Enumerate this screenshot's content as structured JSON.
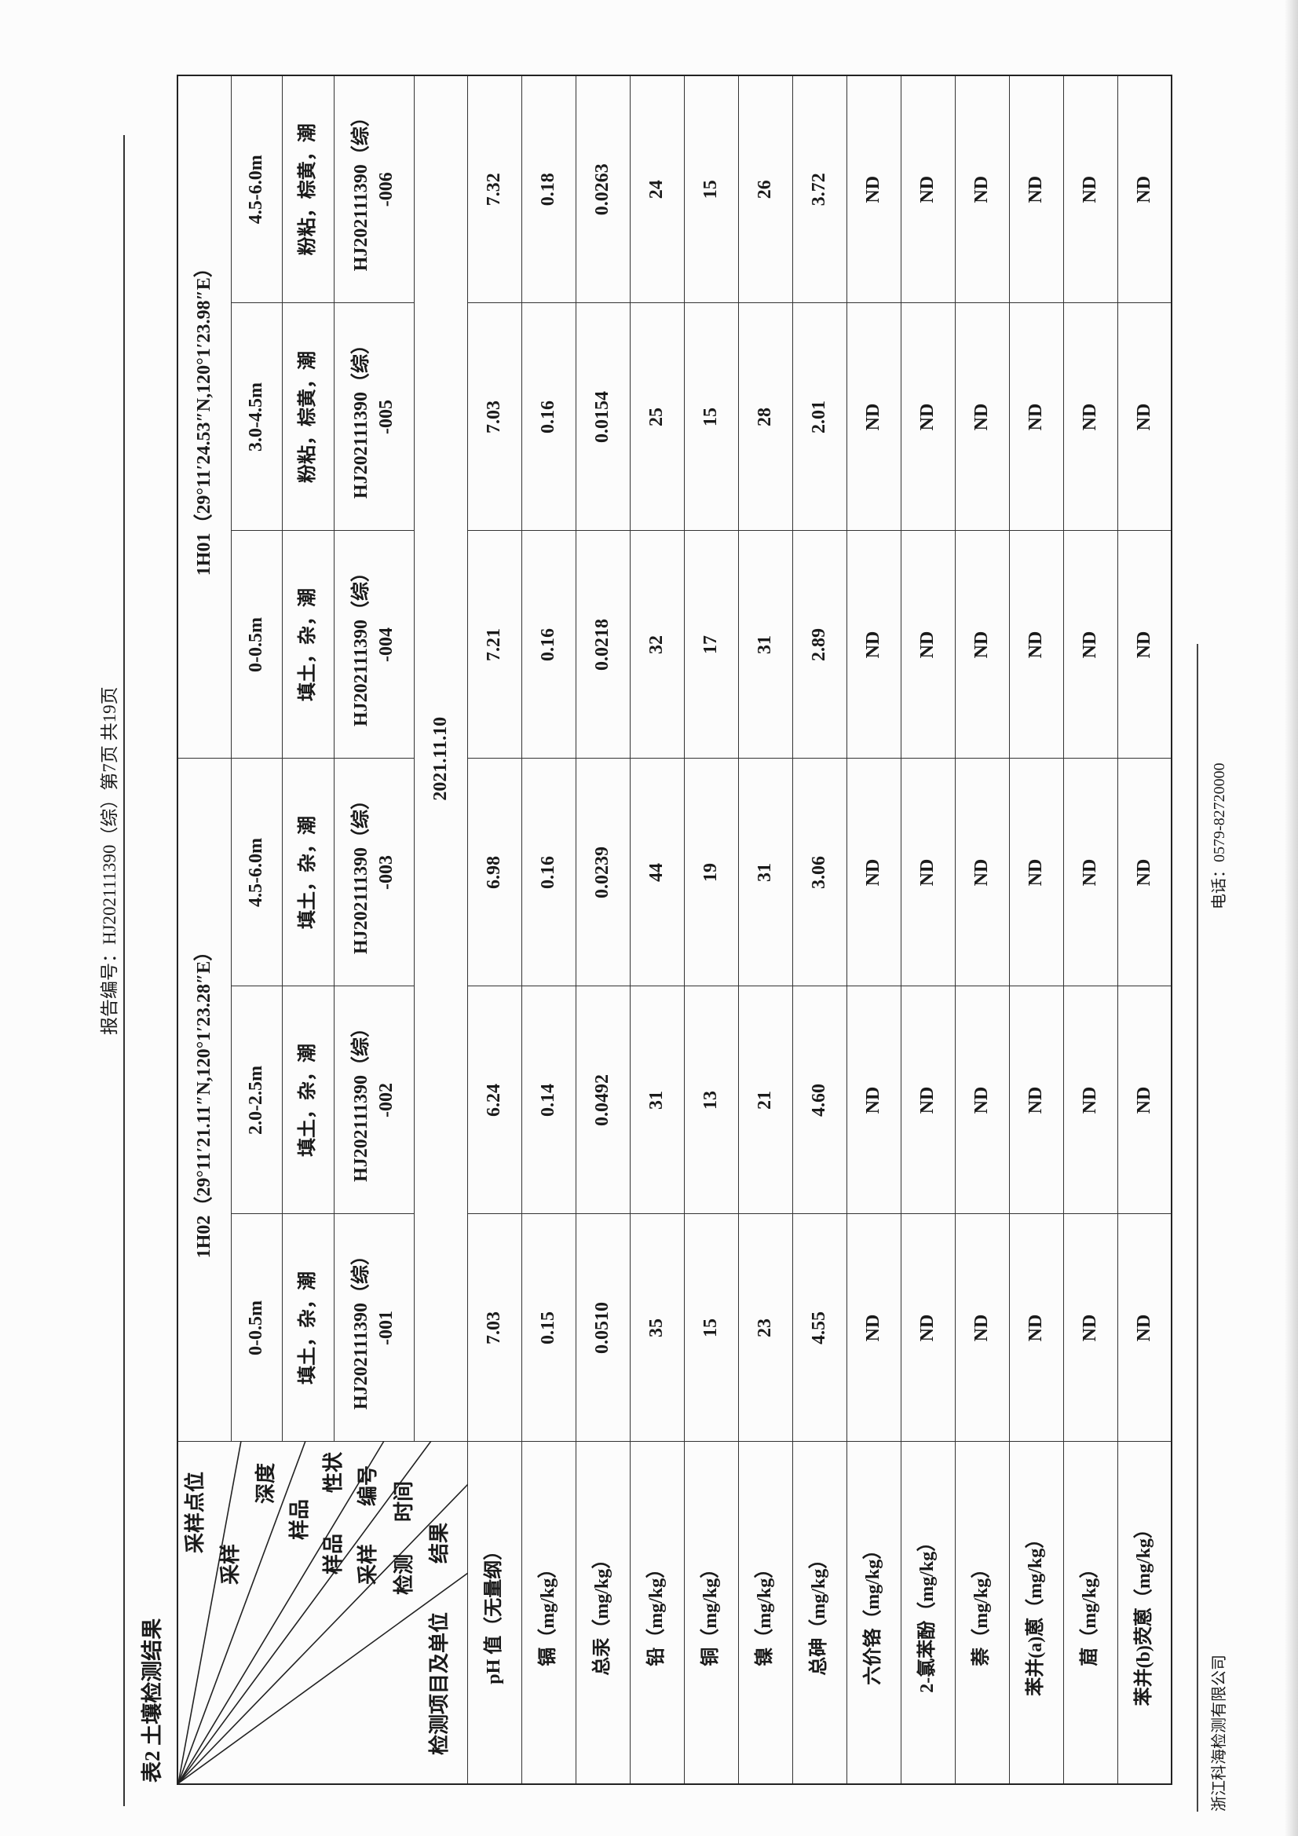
{
  "header": {
    "report_no": "报告编号：HJ202111390（综）第7页 共19页"
  },
  "title": "表2 土壤检测结果",
  "corner_labels": {
    "site": "采样点位",
    "sampling1": "采样",
    "depth": "深度",
    "sample1": "样品",
    "property": "性状",
    "sample2": "样品",
    "number": "编号",
    "sampling2": "采样",
    "time": "时间",
    "detect": "检测",
    "result": "结果",
    "item_unit": "检测项目及单位"
  },
  "sites": [
    "1H02（29°11′21.11″N,120°1′23.28″E）",
    "1H01（29°11′24.53″N,120°1′23.98″E）"
  ],
  "samples": [
    {
      "depth": "0-0.5m",
      "property": "填土，杂，潮",
      "id": "HJ202111390（综）",
      "suffix": "-001"
    },
    {
      "depth": "2.0-2.5m",
      "property": "填土，杂，潮",
      "id": "HJ202111390（综）",
      "suffix": "-002"
    },
    {
      "depth": "4.5-6.0m",
      "property": "填土，杂，潮",
      "id": "HJ202111390（综）",
      "suffix": "-003"
    },
    {
      "depth": "0-0.5m",
      "property": "填土，杂，潮",
      "id": "HJ202111390（综）",
      "suffix": "-004"
    },
    {
      "depth": "3.0-4.5m",
      "property": "粉粘，棕黄，潮",
      "id": "HJ202111390（综）",
      "suffix": "-005"
    },
    {
      "depth": "4.5-6.0m",
      "property": "粉粘，棕黄，潮",
      "id": "HJ202111390（综）",
      "suffix": "-006"
    }
  ],
  "sampling_date": "2021.11.10",
  "rows": [
    {
      "label": "pH 值（无量纲）",
      "values": [
        "7.03",
        "6.24",
        "6.98",
        "7.21",
        "7.03",
        "7.32"
      ]
    },
    {
      "label": "镉（mg/kg）",
      "values": [
        "0.15",
        "0.14",
        "0.16",
        "0.16",
        "0.16",
        "0.18"
      ]
    },
    {
      "label": "总汞（mg/kg）",
      "values": [
        "0.0510",
        "0.0492",
        "0.0239",
        "0.0218",
        "0.0154",
        "0.0263"
      ]
    },
    {
      "label": "铅（mg/kg）",
      "values": [
        "35",
        "31",
        "44",
        "32",
        "25",
        "24"
      ]
    },
    {
      "label": "铜（mg/kg）",
      "values": [
        "15",
        "13",
        "19",
        "17",
        "15",
        "15"
      ]
    },
    {
      "label": "镍（mg/kg）",
      "values": [
        "23",
        "21",
        "31",
        "31",
        "28",
        "26"
      ]
    },
    {
      "label": "总砷（mg/kg）",
      "values": [
        "4.55",
        "4.60",
        "3.06",
        "2.89",
        "2.01",
        "3.72"
      ]
    },
    {
      "label": "六价铬（mg/kg）",
      "values": [
        "ND",
        "ND",
        "ND",
        "ND",
        "ND",
        "ND"
      ]
    },
    {
      "label": "2-氯苯酚（mg/kg）",
      "values": [
        "ND",
        "ND",
        "ND",
        "ND",
        "ND",
        "ND"
      ]
    },
    {
      "label": "萘（mg/kg）",
      "values": [
        "ND",
        "ND",
        "ND",
        "ND",
        "ND",
        "ND"
      ]
    },
    {
      "label": "苯并(a)蒽（mg/kg）",
      "values": [
        "ND",
        "ND",
        "ND",
        "ND",
        "ND",
        "ND"
      ]
    },
    {
      "label": "䓛（mg/kg）",
      "values": [
        "ND",
        "ND",
        "ND",
        "ND",
        "ND",
        "ND"
      ]
    },
    {
      "label": "苯并(b)荧蒽（mg/kg）",
      "values": [
        "ND",
        "ND",
        "ND",
        "ND",
        "ND",
        "ND"
      ]
    }
  ],
  "footer": {
    "company": "浙江科海检测有限公司",
    "phone": "电话：0579-82720000"
  }
}
